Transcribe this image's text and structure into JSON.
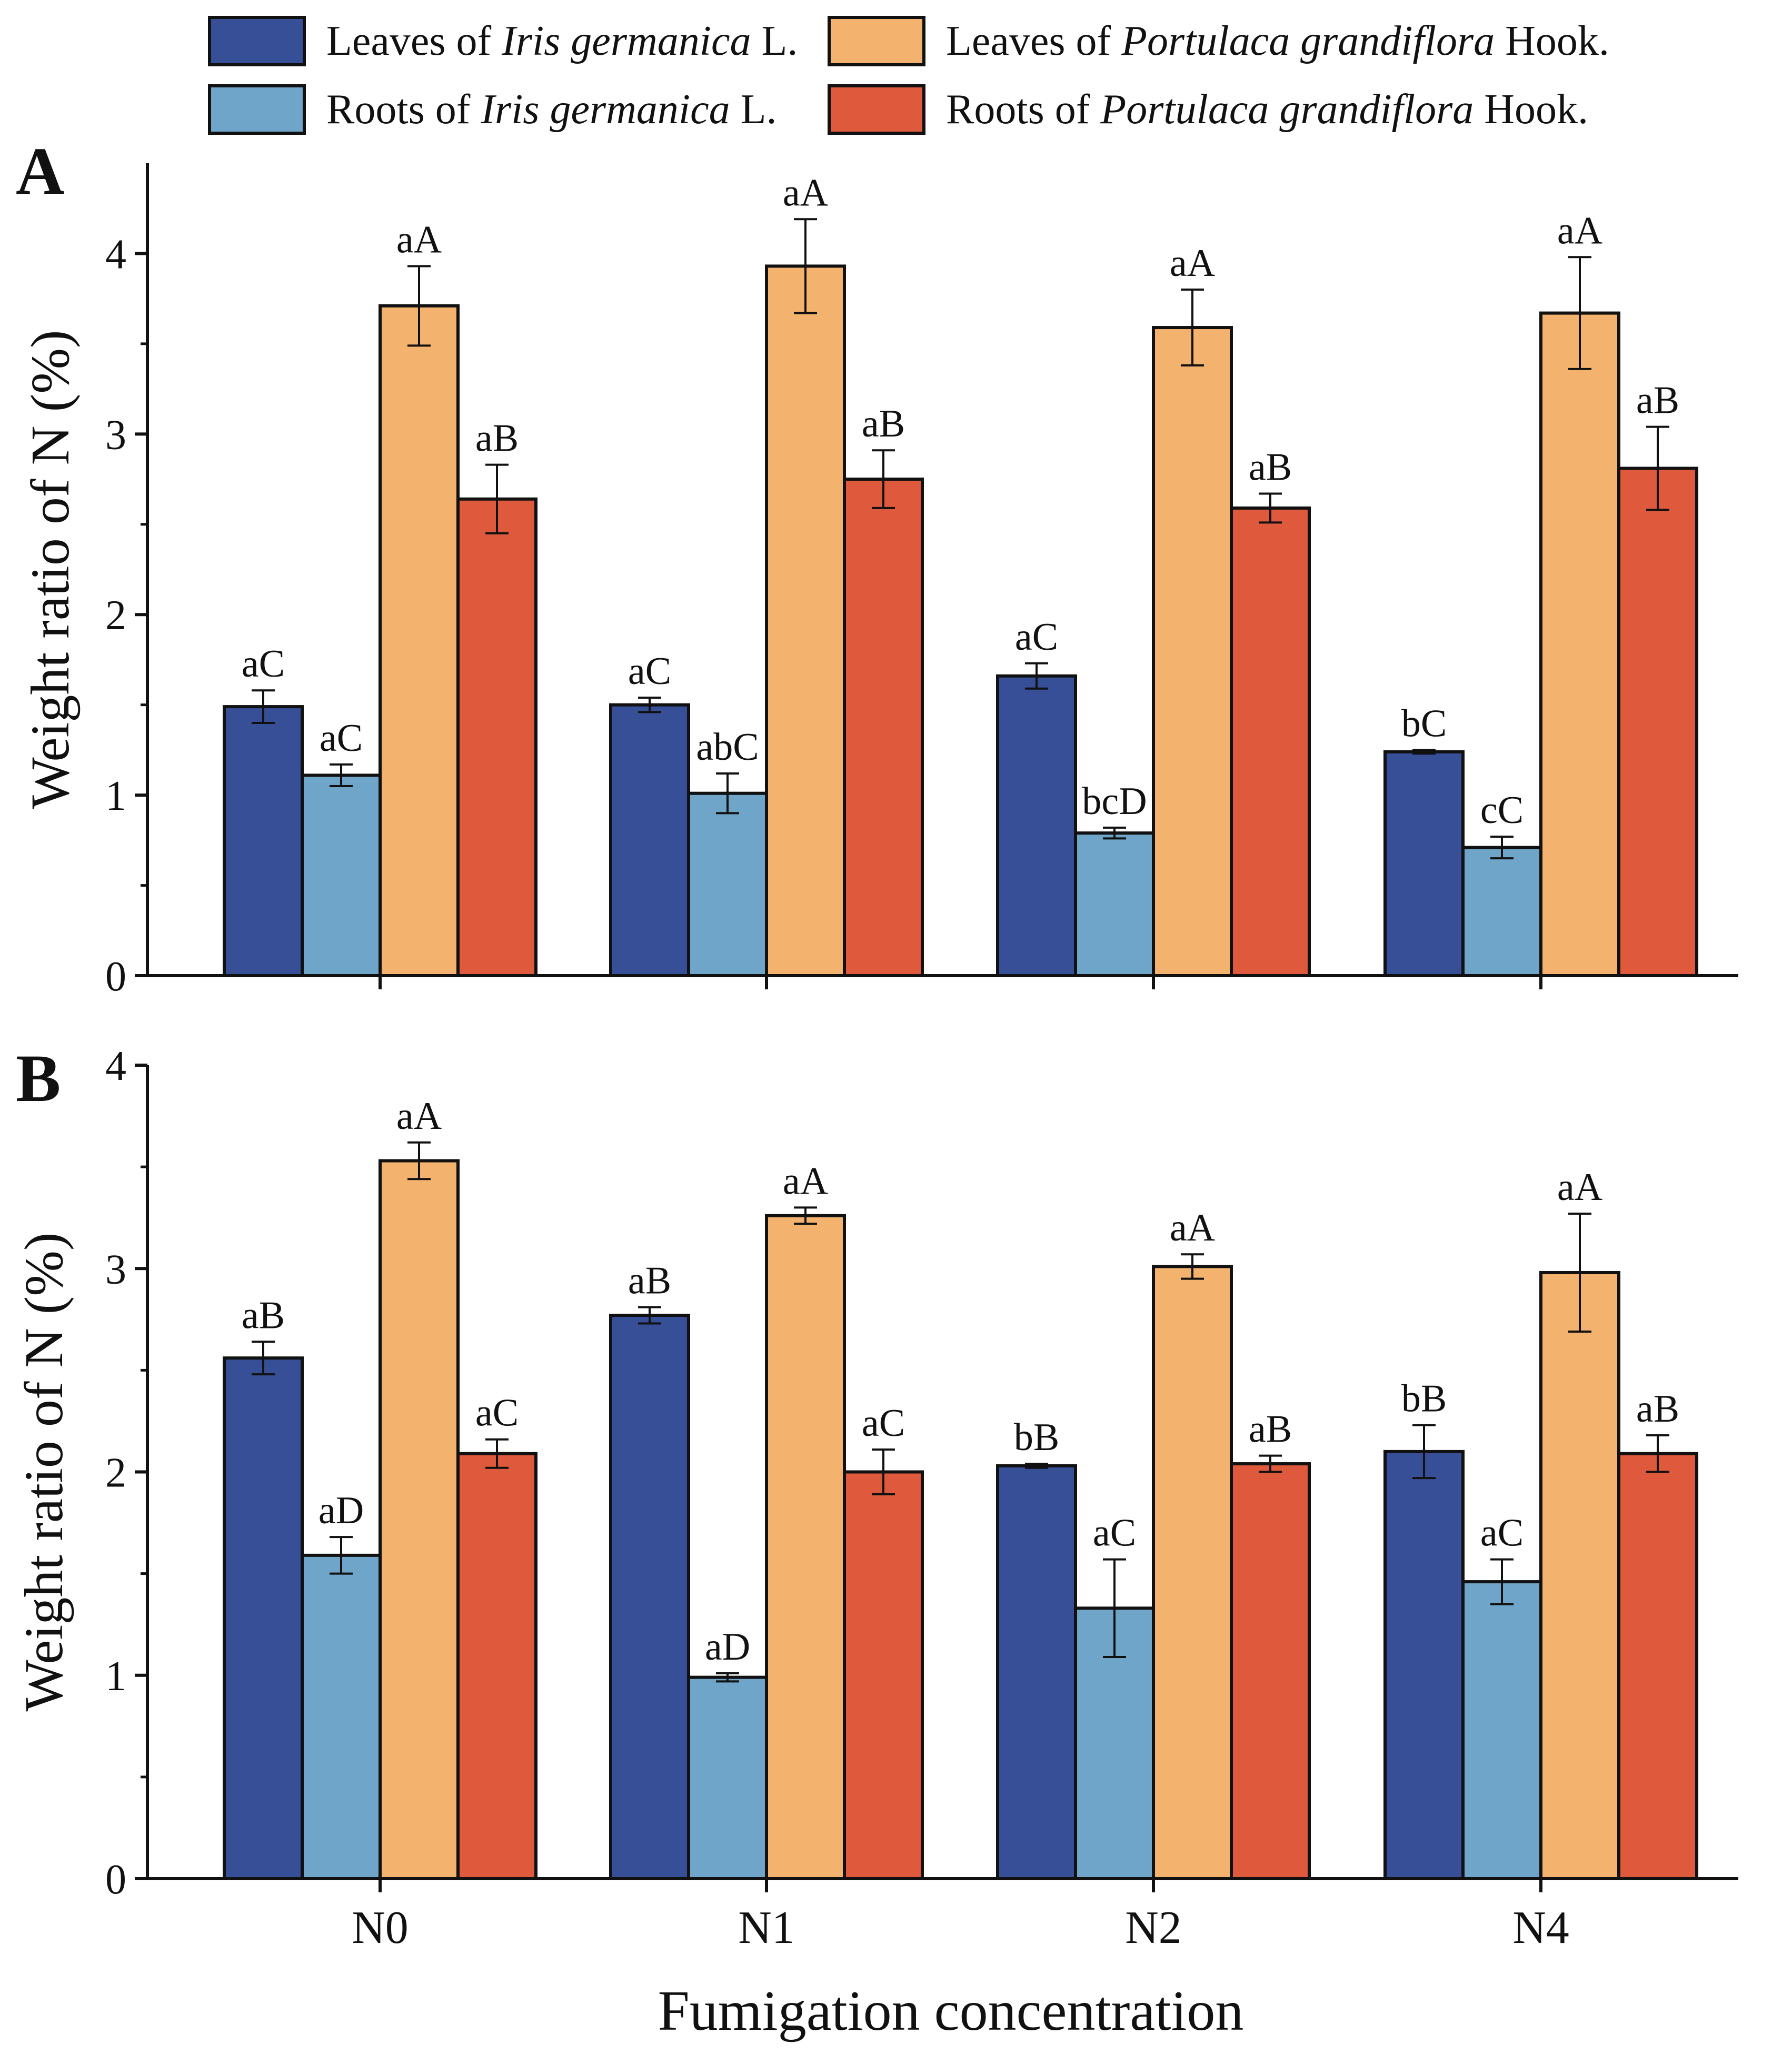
{
  "legend": {
    "items": [
      {
        "prefix": "Leaves of ",
        "species": "Iris germanica",
        "suffix": " L.",
        "color": "#374f97"
      },
      {
        "prefix": "Leaves of ",
        "species": "Portulaca grandiflora",
        "suffix": " Hook.",
        "color": "#f4b26f"
      },
      {
        "prefix": "Roots of ",
        "species": "Iris germanica",
        "suffix": " L.",
        "color": "#6fa5c8"
      },
      {
        "prefix": "Roots of ",
        "species": "Portulaca grandiflora",
        "suffix": " Hook.",
        "color": "#df5a3c"
      }
    ]
  },
  "x_axis_title": "Fumigation concentration",
  "chart_data": [
    {
      "type": "bar",
      "panel_label": "A",
      "ylabel": "Weight ratio of N (%)",
      "xlabel": "Fumigation concentration",
      "ylim": [
        0,
        4.5
      ],
      "yticks": [
        0,
        1,
        2,
        3,
        4
      ],
      "categories": [
        "N0",
        "N1",
        "N2",
        "N4"
      ],
      "series": [
        {
          "name": "Leaves of Iris germanica L.",
          "color": "#374f97",
          "values": [
            1.49,
            1.5,
            1.66,
            1.24
          ],
          "errors": [
            0.09,
            0.04,
            0.07,
            0.01
          ],
          "labels": [
            "aC",
            "aC",
            "aC",
            "bC"
          ]
        },
        {
          "name": "Roots of Iris germanica L.",
          "color": "#6fa5c8",
          "values": [
            1.11,
            1.01,
            0.79,
            0.71
          ],
          "errors": [
            0.06,
            0.11,
            0.03,
            0.06
          ],
          "labels": [
            "aC",
            "abC",
            "bcD",
            "cC"
          ]
        },
        {
          "name": "Leaves of Portulaca grandiflora Hook.",
          "color": "#f4b26f",
          "values": [
            3.71,
            3.93,
            3.59,
            3.67
          ],
          "errors": [
            0.22,
            0.26,
            0.21,
            0.31
          ],
          "labels": [
            "aA",
            "aA",
            "aA",
            "aA"
          ]
        },
        {
          "name": "Roots of Portulaca grandiflora Hook.",
          "color": "#df5a3c",
          "values": [
            2.64,
            2.75,
            2.59,
            2.81
          ],
          "errors": [
            0.19,
            0.16,
            0.08,
            0.23
          ],
          "labels": [
            "aB",
            "aB",
            "aB",
            "aB"
          ]
        }
      ]
    },
    {
      "type": "bar",
      "panel_label": "B",
      "ylabel": "Weight ratio of N (%)",
      "xlabel": "Fumigation concentration",
      "ylim": [
        0,
        4
      ],
      "yticks": [
        0,
        1,
        2,
        3,
        4
      ],
      "categories": [
        "N0",
        "N1",
        "N2",
        "N4"
      ],
      "series": [
        {
          "name": "Leaves of Iris germanica L.",
          "color": "#374f97",
          "values": [
            2.56,
            2.77,
            2.03,
            2.1
          ],
          "errors": [
            0.08,
            0.04,
            0.01,
            0.13
          ],
          "labels": [
            "aB",
            "aB",
            "bB",
            "bB"
          ]
        },
        {
          "name": "Roots of Iris germanica L.",
          "color": "#6fa5c8",
          "values": [
            1.59,
            0.99,
            1.33,
            1.46
          ],
          "errors": [
            0.09,
            0.02,
            0.24,
            0.11
          ],
          "labels": [
            "aD",
            "aD",
            "aC",
            "aC"
          ]
        },
        {
          "name": "Leaves of Portulaca grandiflora Hook.",
          "color": "#f4b26f",
          "values": [
            3.53,
            3.26,
            3.01,
            2.98
          ],
          "errors": [
            0.09,
            0.04,
            0.06,
            0.29
          ],
          "labels": [
            "aA",
            "aA",
            "aA",
            "aA"
          ]
        },
        {
          "name": "Roots of Portulaca grandiflora Hook.",
          "color": "#df5a3c",
          "values": [
            2.09,
            2.0,
            2.04,
            2.09
          ],
          "errors": [
            0.07,
            0.11,
            0.04,
            0.09
          ],
          "labels": [
            "aC",
            "aC",
            "aB",
            "aB"
          ]
        }
      ]
    }
  ]
}
